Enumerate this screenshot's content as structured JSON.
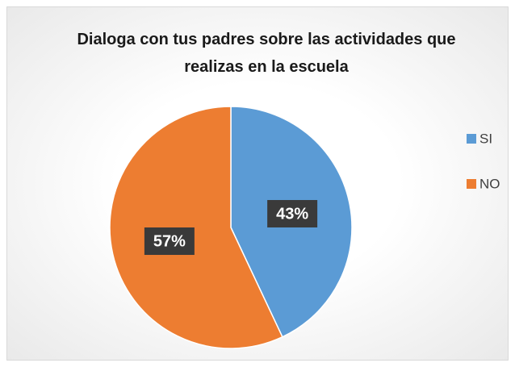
{
  "chart_data": {
    "type": "pie",
    "title": "Dialoga con tus padres sobre las actividades que realizas en la escuela",
    "categories": [
      "SI",
      "NO"
    ],
    "values": [
      43,
      57
    ],
    "value_labels": [
      "43%",
      "57%"
    ],
    "colors": [
      "#5b9bd5",
      "#ed7d31"
    ],
    "legend": "right"
  }
}
